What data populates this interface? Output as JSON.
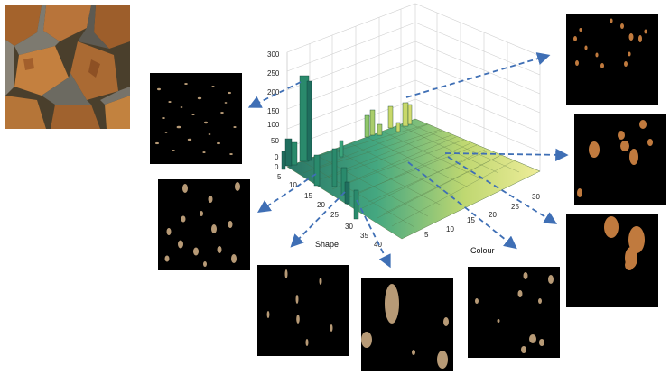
{
  "colors": {
    "background": "#ffffff",
    "panel": "#000000",
    "arrow": "#3f6fb5",
    "blob_tan": "#b79a76",
    "blob_orange": "#c07a3e",
    "bar_low": "#1f6e5e",
    "bar_mid": "#3aa37a",
    "bar_high": "#c8d86a",
    "surface_far": "#e6e88a",
    "grid": "#cfcfcf"
  },
  "chart": {
    "z_ticks": [
      "300",
      "250",
      "200",
      "150",
      "100",
      "50",
      "0",
      "0"
    ],
    "shape_ticks": [
      "5",
      "10",
      "15",
      "20",
      "25",
      "30",
      "35",
      "40"
    ],
    "colour_ticks": [
      "5",
      "10",
      "15",
      "20",
      "25",
      "30"
    ],
    "shape_label": "Shape",
    "colour_label": "Colour"
  },
  "panels": [
    {
      "id": "top-left-sparse",
      "blob": "tan"
    },
    {
      "id": "left-medium",
      "blob": "tan"
    },
    {
      "id": "bottom-left",
      "blob": "tan"
    },
    {
      "id": "bottom-center",
      "blob": "tan"
    },
    {
      "id": "bottom-right",
      "blob": "tan"
    },
    {
      "id": "right-top",
      "blob": "orange"
    },
    {
      "id": "right-middle",
      "blob": "orange"
    },
    {
      "id": "right-bottom",
      "blob": "orange"
    }
  ]
}
